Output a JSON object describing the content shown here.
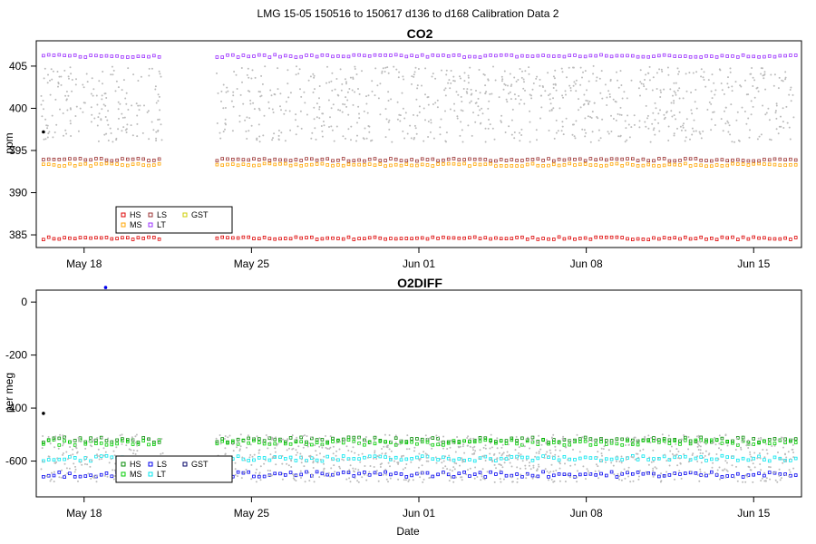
{
  "figure": {
    "suptitle": "LMG   15-05    150516 to 150617    d136 to d168   Calibration Data 2"
  },
  "chart_data": [
    {
      "type": "scatter",
      "title": "CO2",
      "xlabel": "",
      "ylabel": "ppm",
      "x_ticks": [
        "May 18",
        "May 25",
        "Jun 01",
        "Jun 08",
        "Jun 15"
      ],
      "x_range": [
        136,
        168
      ],
      "x_tick_values": [
        138,
        145,
        152,
        159,
        166
      ],
      "ylim": [
        383.5,
        408.0
      ],
      "y_ticks": [
        385,
        390,
        395,
        400,
        405
      ],
      "gap": [
        141.3,
        143.5
      ],
      "legend": {
        "placement": "lower-left",
        "entries": [
          {
            "label": "HS",
            "color": "#dd0000"
          },
          {
            "label": "LS",
            "color": "#9a3030"
          },
          {
            "label": "GST",
            "color": "#cccc00"
          },
          {
            "label": "MS",
            "color": "#ffa500"
          },
          {
            "label": "LT",
            "color": "#9b30ff"
          }
        ]
      },
      "series": [
        {
          "name": "HS",
          "color": "#dd0000",
          "y": 384.6
        },
        {
          "name": "MS",
          "color": "#ffa500",
          "y": 393.3
        },
        {
          "name": "LS",
          "color": "#9a3030",
          "y": 393.9
        },
        {
          "name": "LT",
          "color": "#9b30ff",
          "y": 406.2
        },
        {
          "name": "ambient",
          "color": "#bbbbbb",
          "y_range": [
            396.0,
            405.0
          ]
        }
      ],
      "annotations": [
        {
          "x": 136.3,
          "y": 397.2,
          "color": "#000000"
        }
      ]
    },
    {
      "type": "scatter",
      "title": "O2DIFF",
      "xlabel": "Date",
      "ylabel": "per meg",
      "x_ticks": [
        "May 18",
        "May 25",
        "Jun 01",
        "Jun 08",
        "Jun 15"
      ],
      "x_range": [
        136,
        168
      ],
      "x_tick_values": [
        138,
        145,
        152,
        159,
        166
      ],
      "ylim": [
        -735,
        45
      ],
      "y_ticks": [
        0,
        -200,
        -400,
        -600
      ],
      "gap": [
        141.3,
        143.5
      ],
      "legend": {
        "placement": "lower-left",
        "entries": [
          {
            "label": "HS",
            "color": "#008800"
          },
          {
            "label": "LS",
            "color": "#0000ee"
          },
          {
            "label": "GST",
            "color": "#000066"
          },
          {
            "label": "MS",
            "color": "#00cc00"
          },
          {
            "label": "LT",
            "color": "#00e5ee"
          }
        ]
      },
      "series": [
        {
          "name": "HS",
          "color": "#008800",
          "y": -520
        },
        {
          "name": "MS",
          "color": "#00cc00",
          "y": -530
        },
        {
          "name": "LT",
          "color": "#00e5ee",
          "y": -590
        },
        {
          "name": "LS",
          "color": "#0000ee",
          "y": -650
        },
        {
          "name": "ambient",
          "color": "#bbbbbb",
          "y_range": [
            -680,
            -500
          ]
        }
      ],
      "annotations": [
        {
          "x": 136.3,
          "y": -420,
          "color": "#000000"
        },
        {
          "x": 138.9,
          "y": 55,
          "color": "#0000ee"
        }
      ]
    }
  ]
}
